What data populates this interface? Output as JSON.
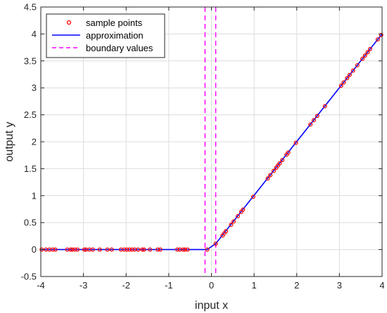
{
  "chart_data": {
    "type": "line",
    "title": "",
    "xlabel": "input x",
    "ylabel": "output y",
    "xlim": [
      -4,
      4
    ],
    "ylim": [
      -0.5,
      4.5
    ],
    "x_ticks": [
      -4,
      -3,
      -2,
      -1,
      0,
      1,
      2,
      3,
      4
    ],
    "y_ticks": [
      -0.5,
      0,
      0.5,
      1,
      1.5,
      2,
      2.5,
      3,
      3.5,
      4,
      4.5
    ],
    "grid": true,
    "legend_position": "top-left",
    "series": [
      {
        "name": "sample points",
        "kind": "markers",
        "color": "#ff0000",
        "x": [
          -3.98,
          -3.88,
          -3.8,
          -3.72,
          -3.66,
          -3.38,
          -3.3,
          -3.26,
          -3.2,
          -3.14,
          -2.98,
          -2.94,
          -2.86,
          -2.78,
          -2.62,
          -2.44,
          -2.34,
          -2.12,
          -2.04,
          -1.98,
          -1.92,
          -1.86,
          -1.8,
          -1.72,
          -1.62,
          -1.58,
          -1.44,
          -1.26,
          -1.2,
          -0.8,
          -0.74,
          -0.66,
          -0.62,
          -0.56,
          -0.1,
          0.1,
          0.26,
          0.3,
          0.34,
          0.46,
          0.52,
          0.62,
          0.7,
          0.74,
          0.98,
          1.32,
          1.38,
          1.46,
          1.52,
          1.56,
          1.6,
          1.66,
          1.76,
          1.8,
          1.98,
          2.32,
          2.4,
          2.48,
          2.66,
          3.04,
          3.1,
          3.18,
          3.24,
          3.32,
          3.42,
          3.54,
          3.6,
          3.66,
          3.72,
          3.9,
          3.98
        ],
        "y": [
          0,
          0,
          0,
          0,
          0,
          0,
          0,
          0,
          0,
          0,
          0,
          0,
          0,
          0,
          0,
          0,
          0,
          0,
          0,
          0,
          0,
          0,
          0,
          0,
          0,
          0,
          0,
          0,
          0,
          0,
          0,
          0,
          0,
          0,
          0,
          0.11,
          0.26,
          0.3,
          0.34,
          0.46,
          0.52,
          0.62,
          0.7,
          0.74,
          0.98,
          1.32,
          1.38,
          1.46,
          1.52,
          1.56,
          1.6,
          1.66,
          1.76,
          1.8,
          1.98,
          2.32,
          2.4,
          2.48,
          2.66,
          3.04,
          3.1,
          3.18,
          3.24,
          3.32,
          3.42,
          3.54,
          3.6,
          3.66,
          3.72,
          3.9,
          3.98
        ]
      },
      {
        "name": "approximation",
        "kind": "line",
        "color": "#0000ff",
        "x": [
          -4,
          -0.1,
          0.1,
          4
        ],
        "y": [
          0,
          0,
          0.11,
          4
        ]
      },
      {
        "name": "boundary values",
        "kind": "vlines",
        "color": "#ff00ff",
        "x": [
          -0.15,
          0.1
        ]
      }
    ]
  }
}
